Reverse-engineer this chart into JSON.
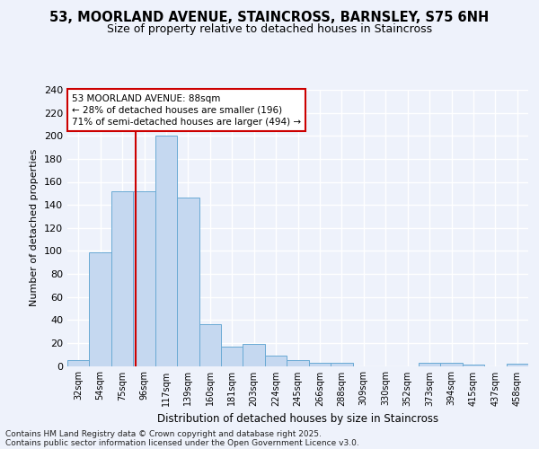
{
  "title1": "53, MOORLAND AVENUE, STAINCROSS, BARNSLEY, S75 6NH",
  "title2": "Size of property relative to detached houses in Staincross",
  "xlabel": "Distribution of detached houses by size in Staincross",
  "ylabel": "Number of detached properties",
  "bins": [
    "32sqm",
    "54sqm",
    "75sqm",
    "96sqm",
    "117sqm",
    "139sqm",
    "160sqm",
    "181sqm",
    "203sqm",
    "224sqm",
    "245sqm",
    "266sqm",
    "288sqm",
    "309sqm",
    "330sqm",
    "352sqm",
    "373sqm",
    "394sqm",
    "415sqm",
    "437sqm",
    "458sqm"
  ],
  "values": [
    5,
    99,
    152,
    152,
    200,
    146,
    36,
    17,
    19,
    9,
    5,
    3,
    3,
    0,
    0,
    0,
    3,
    3,
    1,
    0,
    2
  ],
  "bar_color": "#c5d8f0",
  "bar_edge_color": "#6aaad4",
  "subject_line_color": "#cc0000",
  "annotation_text": "53 MOORLAND AVENUE: 88sqm\n← 28% of detached houses are smaller (196)\n71% of semi-detached houses are larger (494) →",
  "annotation_box_color": "#ffffff",
  "annotation_box_edge": "#cc0000",
  "footer1": "Contains HM Land Registry data © Crown copyright and database right 2025.",
  "footer2": "Contains public sector information licensed under the Open Government Licence v3.0.",
  "background_color": "#eef2fb",
  "grid_color": "#ffffff",
  "ylim": [
    0,
    240
  ],
  "yticks": [
    0,
    20,
    40,
    60,
    80,
    100,
    120,
    140,
    160,
    180,
    200,
    220,
    240
  ]
}
